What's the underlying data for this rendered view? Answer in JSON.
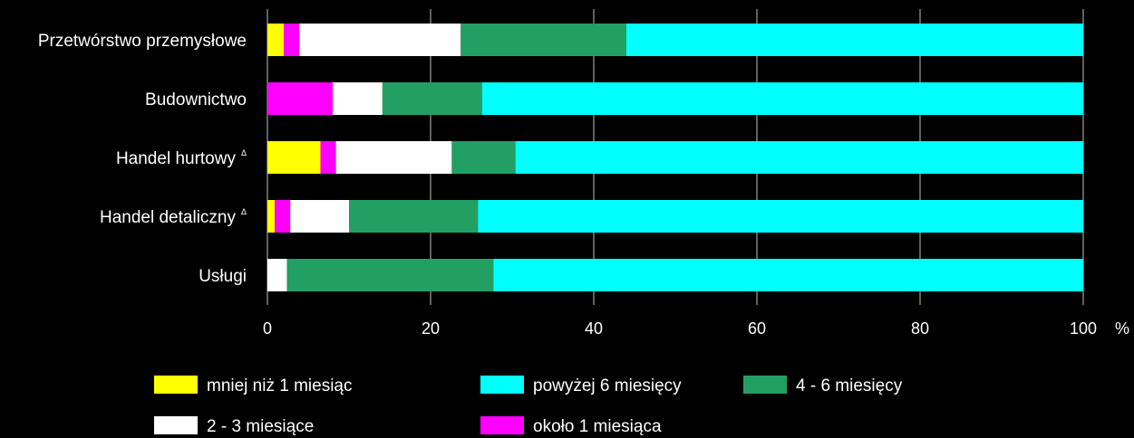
{
  "chart_data": {
    "type": "bar",
    "orientation": "horizontal",
    "stacked": true,
    "categories": [
      {
        "name": "Przetwórstwo przemysłowe",
        "marker": ""
      },
      {
        "name": "Budownictwo",
        "marker": ""
      },
      {
        "name": "Handel hurtowy",
        "marker": "Δ"
      },
      {
        "name": "Handel detaliczny",
        "marker": "Δ"
      },
      {
        "name": "Usługi",
        "marker": ""
      }
    ],
    "series": [
      {
        "name": "mniej niż 1 miesiąc",
        "color": "#ffff00",
        "values": [
          2.0,
          0.0,
          6.5,
          0.9,
          0.0
        ]
      },
      {
        "name": "około 1 miesiąca",
        "color": "#ff00ff",
        "values": [
          1.9,
          8.0,
          1.9,
          1.9,
          0.0
        ]
      },
      {
        "name": "2 - 3 miesiące",
        "color": "#ffffff",
        "values": [
          19.8,
          6.1,
          14.2,
          7.2,
          2.4
        ]
      },
      {
        "name": "4 - 6 miesięcy",
        "color": "#22a063",
        "values": [
          20.3,
          12.2,
          7.8,
          15.8,
          25.3
        ]
      },
      {
        "name": "powyżej 6 miesięcy",
        "color": "#00ffff",
        "values": [
          56.0,
          73.7,
          69.6,
          74.2,
          72.3
        ]
      }
    ],
    "xlim": [
      0,
      100
    ],
    "xticks": [
      "0",
      "20",
      "40",
      "60",
      "80",
      "100"
    ],
    "xunit": "%",
    "grid": true,
    "legend_position": "bottom",
    "legend_order": [
      0,
      2,
      4,
      1,
      3
    ]
  }
}
